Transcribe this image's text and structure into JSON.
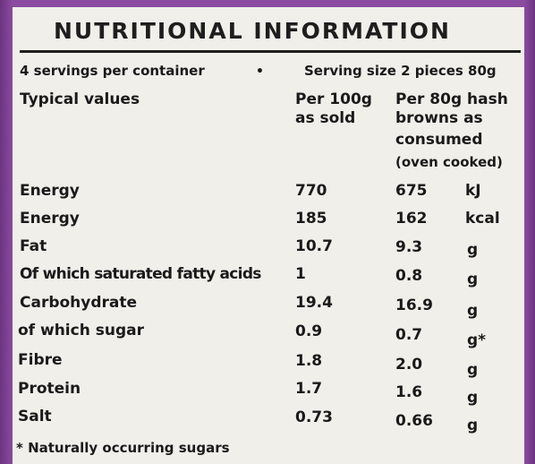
{
  "title": "NUTRITIONAL INFORMATION",
  "servings": "4 servings per container",
  "separator": "•",
  "serving_size": "Serving size 2 pieces 80g",
  "header": {
    "typical": "Typical values",
    "col1_line1": "Per 100g",
    "col1_line2": "as sold",
    "col2_line1": "Per 80g hash",
    "col2_line2": "browns as",
    "col2_line3": "consumed",
    "col2_line4": "(oven cooked)"
  },
  "rows": [
    {
      "name": "Energy",
      "per100": "770",
      "per80": "675",
      "unit": "kJ"
    },
    {
      "name": "Energy",
      "per100": "185",
      "per80": "162",
      "unit": "kcal"
    },
    {
      "name": "Fat",
      "per100": "10.7",
      "per80": "9.3",
      "unit": "g"
    },
    {
      "name": "Of which saturated fatty acids",
      "per100": "1",
      "per80": "0.8",
      "unit": "g"
    },
    {
      "name": "Carbohydrate",
      "per100": "19.4",
      "per80": "16.9",
      "unit": "g"
    },
    {
      "name": "of which sugar",
      "per100": "0.9",
      "per80": "0.7",
      "unit": "g*"
    },
    {
      "name": "Fibre",
      "per100": "1.8",
      "per80": "2.0",
      "unit": "g"
    },
    {
      "name": "Protein",
      "per100": "1.7",
      "per80": "1.6",
      "unit": "g"
    },
    {
      "name": "Salt",
      "per100": "0.73",
      "per80": "0.66",
      "unit": "g"
    }
  ],
  "footnote": "* Naturally occurring sugars",
  "colors": {
    "label_bg": "#f1efe9",
    "pack_purple": "#7a3e8f",
    "ink": "#1a1a1a"
  }
}
